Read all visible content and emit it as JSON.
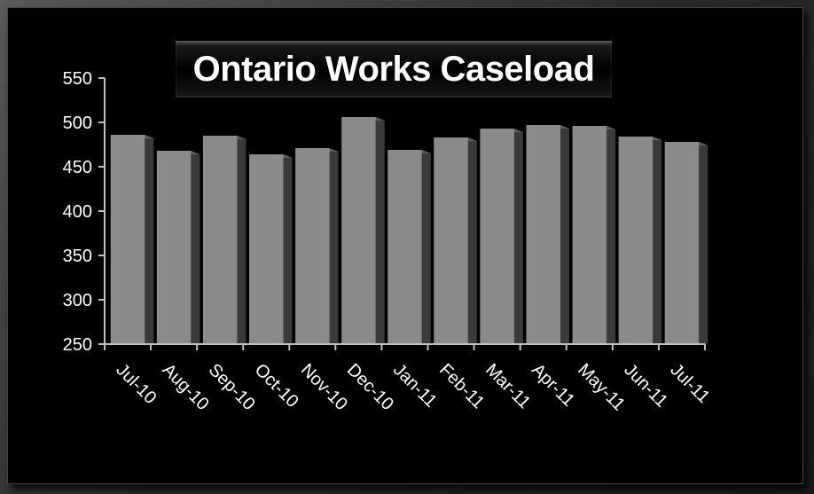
{
  "chart_data": {
    "type": "bar",
    "title": "Ontario Works Caseload",
    "categories": [
      "Jul-10",
      "Aug-10",
      "Sep-10",
      "Oct-10",
      "Nov-10",
      "Dec-10",
      "Jan-11",
      "Feb-11",
      "Mar-11",
      "Apr-11",
      "May-11",
      "Jun-11",
      "Jul-11"
    ],
    "values": [
      486,
      468,
      485,
      464,
      471,
      506,
      469,
      483,
      493,
      497,
      496,
      484,
      478
    ],
    "xlabel": "",
    "ylabel": "",
    "ylim": [
      250,
      550
    ],
    "yticks": [
      250,
      300,
      350,
      400,
      450,
      500,
      550
    ],
    "grid": false,
    "legend": "none",
    "colors": {
      "background": "#000000",
      "bar_face": "#8a8a8a",
      "bar_side": "#3a3a3a",
      "axis": "#bfbfbf",
      "text": "#ffffff"
    }
  }
}
